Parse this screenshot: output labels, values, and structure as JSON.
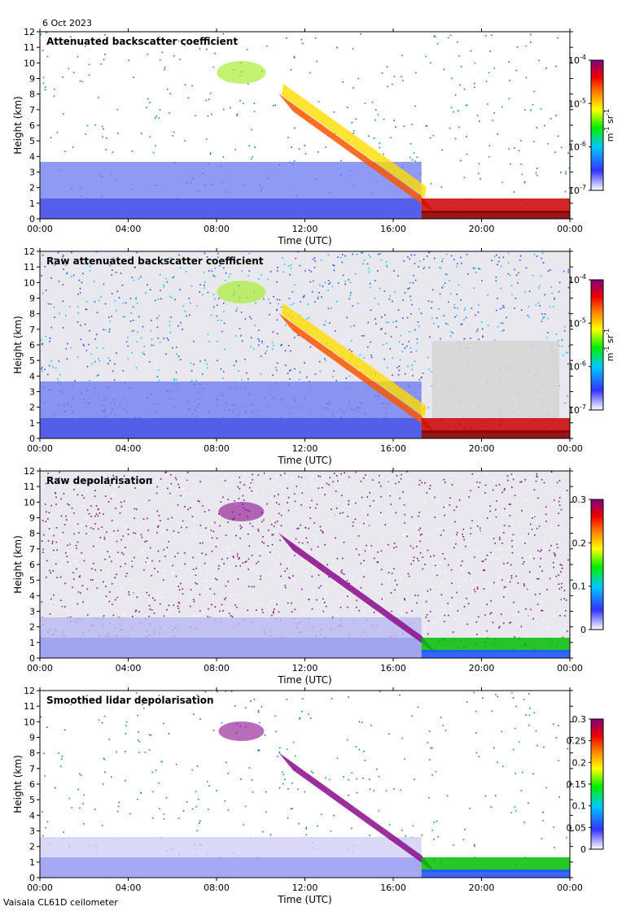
{
  "date": "6 Oct 2023",
  "footer": "Vaisala CL61D ceilometer",
  "chart_data": [
    {
      "type": "heatmap",
      "title": "Attenuated backscatter coefficient",
      "xlabel": "Time (UTC)",
      "ylabel": "Height (km)",
      "x_ticks": [
        "00:00",
        "04:00",
        "08:00",
        "12:00",
        "16:00",
        "20:00",
        "00:00"
      ],
      "y_ticks": [
        0,
        1,
        2,
        3,
        4,
        5,
        6,
        7,
        8,
        9,
        10,
        11,
        12
      ],
      "xlim": [
        "00:00",
        "00:00"
      ],
      "ylim": [
        0,
        12
      ],
      "colorbar": {
        "scale": "log",
        "range": [
          1e-07,
          0.0001
        ],
        "ticks": [
          "10",
          "10",
          "10",
          "10"
        ],
        "tick_exponents": [
          "-7",
          "-6",
          "-5",
          "-4"
        ],
        "units": "m",
        "units_exp1": "-1",
        "units_mid": "sr",
        "units_exp2": "-1"
      }
    },
    {
      "type": "heatmap",
      "title": "Raw attenuated backscatter coefficient",
      "xlabel": "Time (UTC)",
      "ylabel": "Height (km)",
      "x_ticks": [
        "00:00",
        "04:00",
        "08:00",
        "12:00",
        "16:00",
        "20:00",
        "00:00"
      ],
      "y_ticks": [
        0,
        1,
        2,
        3,
        4,
        5,
        6,
        7,
        8,
        9,
        10,
        11,
        12
      ],
      "xlim": [
        "00:00",
        "00:00"
      ],
      "ylim": [
        0,
        12
      ],
      "colorbar": {
        "scale": "log",
        "range": [
          1e-07,
          0.0001
        ],
        "ticks": [
          "10",
          "10",
          "10",
          "10"
        ],
        "tick_exponents": [
          "-7",
          "-6",
          "-5",
          "-4"
        ],
        "units": "m",
        "units_exp1": "-1",
        "units_mid": "sr",
        "units_exp2": "-1"
      }
    },
    {
      "type": "heatmap",
      "title": "Raw depolarisation",
      "xlabel": "Time (UTC)",
      "ylabel": "Height (km)",
      "x_ticks": [
        "00:00",
        "04:00",
        "08:00",
        "12:00",
        "16:00",
        "20:00",
        "00:00"
      ],
      "y_ticks": [
        0,
        1,
        2,
        3,
        4,
        5,
        6,
        7,
        8,
        9,
        10,
        11,
        12
      ],
      "xlim": [
        "00:00",
        "00:00"
      ],
      "ylim": [
        0,
        12
      ],
      "colorbar": {
        "scale": "linear",
        "range": [
          0,
          0.3
        ],
        "ticks": [
          "0",
          "0.1",
          "0.2",
          "0.3"
        ]
      }
    },
    {
      "type": "heatmap",
      "title": "Smoothed lidar depolarisation",
      "xlabel": "Time (UTC)",
      "ylabel": "Height (km)",
      "x_ticks": [
        "00:00",
        "04:00",
        "08:00",
        "12:00",
        "16:00",
        "20:00",
        "00:00"
      ],
      "y_ticks": [
        0,
        1,
        2,
        3,
        4,
        5,
        6,
        7,
        8,
        9,
        10,
        11,
        12
      ],
      "xlim": [
        "00:00",
        "00:00"
      ],
      "ylim": [
        0,
        12
      ],
      "colorbar": {
        "scale": "linear",
        "range": [
          0,
          0.3
        ],
        "ticks": [
          "0",
          "0.05",
          "0.1",
          "0.15",
          "0.2",
          "0.25",
          "0.3"
        ]
      }
    }
  ]
}
